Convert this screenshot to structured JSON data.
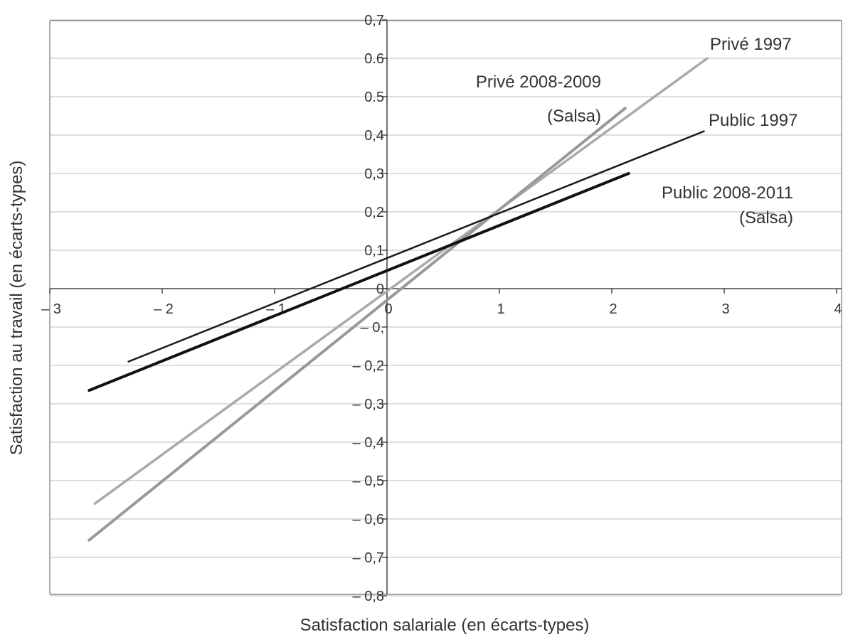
{
  "chart_data": {
    "type": "line",
    "title": "",
    "xlabel": "Satisfaction salariale (en écarts-types)",
    "ylabel": "Satisfaction au travail (en écarts-types)",
    "xlim": [
      -3,
      4
    ],
    "ylim": [
      -0.8,
      0.7
    ],
    "grid": "horizontal",
    "x_ticks": [
      {
        "v": -3,
        "label": "– 3"
      },
      {
        "v": -2,
        "label": "– 2"
      },
      {
        "v": -1,
        "label": "– 1"
      },
      {
        "v": 0,
        "label": "0"
      },
      {
        "v": 1,
        "label": "1"
      },
      {
        "v": 2,
        "label": "2"
      },
      {
        "v": 3,
        "label": "3"
      },
      {
        "v": 4,
        "label": "4"
      }
    ],
    "y_ticks": [
      {
        "v": 0.7,
        "label": "0,7"
      },
      {
        "v": 0.6,
        "label": "0.6"
      },
      {
        "v": 0.5,
        "label": "0.5"
      },
      {
        "v": 0.4,
        "label": "0,4"
      },
      {
        "v": 0.3,
        "label": "0,3"
      },
      {
        "v": 0.2,
        "label": "0,2"
      },
      {
        "v": 0.1,
        "label": "0,1"
      },
      {
        "v": 0,
        "label": "0"
      },
      {
        "v": -0.1,
        "label": "– 0,"
      },
      {
        "v": -0.2,
        "label": "– 0,2"
      },
      {
        "v": -0.3,
        "label": "– 0,3"
      },
      {
        "v": -0.4,
        "label": "– 0,4"
      },
      {
        "v": -0.5,
        "label": "– 0,5"
      },
      {
        "v": -0.6,
        "label": "– 0,6"
      },
      {
        "v": -0.7,
        "label": "– 0,7"
      },
      {
        "v": -0.8,
        "label": "– 0,8"
      }
    ],
    "series": [
      {
        "name": "Privé 1997",
        "color": "#aaaaaa",
        "width": 3.5,
        "x": [
          -2.6,
          2.85
        ],
        "y": [
          -0.56,
          0.6
        ]
      },
      {
        "name": "Privé 2008-2009 (Salsa)",
        "color": "#999999",
        "width": 4,
        "x": [
          -2.65,
          2.12
        ],
        "y": [
          -0.655,
          0.47
        ]
      },
      {
        "name": "Public 1997",
        "color": "#1a1a1a",
        "width": 2.5,
        "x": [
          -2.3,
          2.82
        ],
        "y": [
          -0.19,
          0.41
        ]
      },
      {
        "name": "Public 2008-2011 (Salsa)",
        "color": "#111111",
        "width": 4,
        "x": [
          -2.65,
          2.15
        ],
        "y": [
          -0.265,
          0.3
        ]
      }
    ],
    "annotations": [
      {
        "key": "prive1997",
        "lines": [
          "Privé 1997"
        ]
      },
      {
        "key": "prive2008",
        "lines": [
          "Privé 2008-2009",
          "(Salsa)"
        ]
      },
      {
        "key": "public1997",
        "lines": [
          "Public 1997"
        ]
      },
      {
        "key": "public2008",
        "lines": [
          "Public 2008-2011",
          "(Salsa)"
        ]
      }
    ]
  }
}
